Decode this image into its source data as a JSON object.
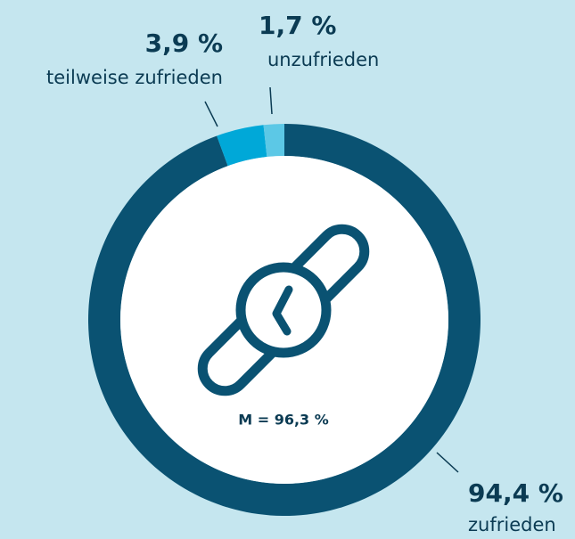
{
  "chart_data": {
    "type": "donut",
    "categories": [
      "zufrieden",
      "teilweise zufrieden",
      "unzufrieden"
    ],
    "values": [
      94.4,
      3.9,
      1.7
    ],
    "value_labels": [
      "94,4 %",
      "3,9 %",
      "1,7 %"
    ],
    "colors": [
      "#0a5272",
      "#00a8d8",
      "#5cc8e6"
    ],
    "annotation": "M = 96,3 %"
  }
}
